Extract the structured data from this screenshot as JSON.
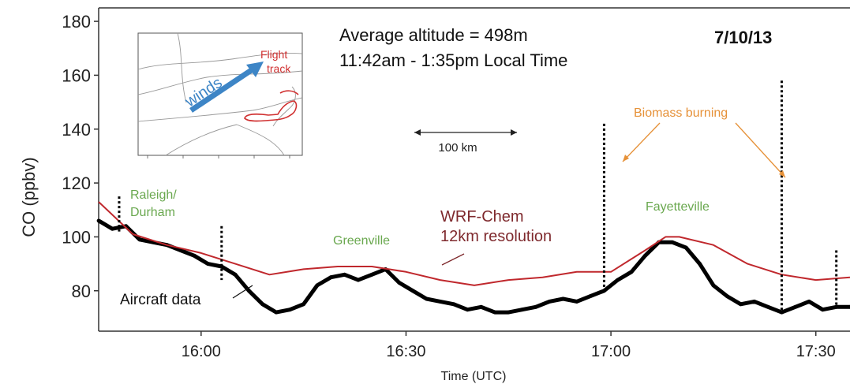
{
  "chart_data": {
    "type": "line",
    "title": "",
    "xlabel": "Time (UTC)",
    "ylabel": "CO (ppbv)",
    "xlim": [
      "15:45",
      "17:35"
    ],
    "ylim": [
      65,
      185
    ],
    "x_ticks": [
      "16:00",
      "16:30",
      "17:00",
      "17:30"
    ],
    "y_ticks": [
      80,
      100,
      120,
      140,
      160,
      180
    ],
    "grid": false,
    "date_label": "7/10/13",
    "info_lines": [
      "Average altitude = 498m",
      "11:42am - 1:35pm Local Time"
    ],
    "scale_bar_label": "100 km",
    "series": [
      {
        "name": "Aircraft data",
        "color": "#000000",
        "x": [
          "15:45",
          "15:47",
          "15:49",
          "15:51",
          "15:53",
          "15:55",
          "15:57",
          "15:59",
          "16:01",
          "16:03",
          "16:05",
          "16:07",
          "16:09",
          "16:11",
          "16:13",
          "16:15",
          "16:17",
          "16:19",
          "16:21",
          "16:23",
          "16:25",
          "16:27",
          "16:29",
          "16:31",
          "16:33",
          "16:35",
          "16:37",
          "16:39",
          "16:41",
          "16:43",
          "16:45",
          "16:47",
          "16:49",
          "16:51",
          "16:53",
          "16:55",
          "16:57",
          "16:59",
          "17:01",
          "17:03",
          "17:05",
          "17:07",
          "17:09",
          "17:11",
          "17:13",
          "17:15",
          "17:17",
          "17:19",
          "17:21",
          "17:23",
          "17:25",
          "17:27",
          "17:29",
          "17:31",
          "17:33",
          "17:35"
        ],
        "values": [
          106,
          103,
          104,
          99,
          98,
          97,
          95,
          93,
          90,
          89,
          86,
          80,
          75,
          72,
          73,
          75,
          82,
          85,
          86,
          84,
          86,
          88,
          83,
          80,
          77,
          76,
          75,
          73,
          74,
          72,
          72,
          73,
          74,
          76,
          77,
          76,
          78,
          80,
          84,
          87,
          93,
          98,
          98,
          96,
          90,
          82,
          78,
          75,
          76,
          74,
          72,
          74,
          76,
          73,
          74,
          74
        ]
      },
      {
        "name": "WRF-Chem",
        "color": "#c0282d",
        "x": [
          "15:45",
          "15:50",
          "15:55",
          "16:00",
          "16:05",
          "16:10",
          "16:15",
          "16:20",
          "16:25",
          "16:30",
          "16:35",
          "16:40",
          "16:45",
          "16:50",
          "16:55",
          "17:00",
          "17:05",
          "17:08",
          "17:10",
          "17:15",
          "17:20",
          "17:25",
          "17:30",
          "17:35"
        ],
        "values": [
          113,
          101,
          97,
          94,
          90,
          86,
          88,
          89,
          89,
          87,
          84,
          82,
          84,
          85,
          87,
          87,
          95,
          100,
          100,
          97,
          90,
          86,
          84,
          85
        ]
      }
    ],
    "spikes": [
      {
        "x": "15:48",
        "top": 115,
        "bottom": 102
      },
      {
        "x": "16:03",
        "top": 104,
        "bottom": 84
      },
      {
        "x": "16:59",
        "top": 142,
        "bottom": 80
      },
      {
        "x": "17:25",
        "top": 158,
        "bottom": 72
      },
      {
        "x": "17:33",
        "top": 95,
        "bottom": 74
      }
    ],
    "annotations": [
      {
        "text": "Raleigh/",
        "color": "#6aa84f"
      },
      {
        "text": "Durham",
        "color": "#6aa84f"
      },
      {
        "text": "Greenville",
        "color": "#6aa84f"
      },
      {
        "text": "Fayetteville",
        "color": "#6aa84f"
      },
      {
        "text": "Biomass burning",
        "color": "#e69138"
      },
      {
        "text": "WRF-Chem",
        "color": "#7f2a2e"
      },
      {
        "text": "12km resolution",
        "color": "#7f2a2e"
      },
      {
        "text": "Aircraft data",
        "color": "#000000"
      }
    ],
    "inset_map": {
      "winds_label": "winds",
      "flight_track_label": [
        "Flight",
        "track"
      ],
      "winds_color": "#3d85c6",
      "track_color": "#d03030"
    }
  }
}
